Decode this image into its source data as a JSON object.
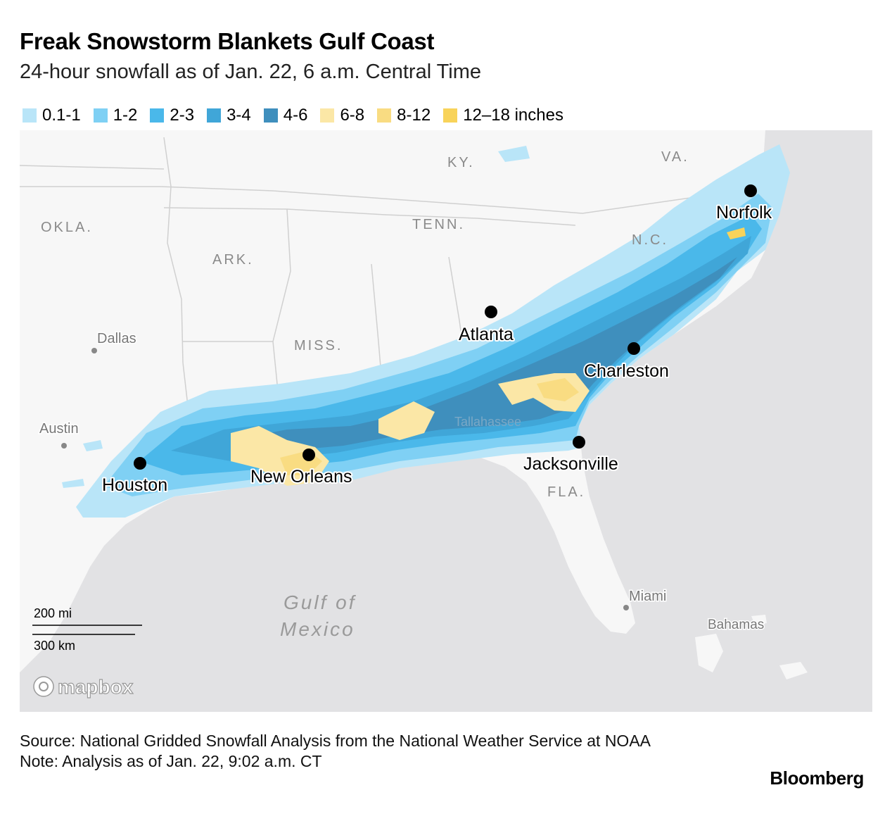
{
  "title": "Freak Snowstorm Blankets Gulf Coast",
  "subtitle": "24-hour snowfall as of Jan. 22, 6 a.m. Central Time",
  "legend": [
    {
      "label": "0.1-1",
      "color": "#b9e5f8"
    },
    {
      "label": "1-2",
      "color": "#7fd0f4"
    },
    {
      "label": "2-3",
      "color": "#4ab8ea"
    },
    {
      "label": "3-4",
      "color": "#40a6d8"
    },
    {
      "label": "4-6",
      "color": "#3f8fbd"
    },
    {
      "label": "6-8",
      "color": "#fbe7a6"
    },
    {
      "label": "8-12",
      "color": "#f9dc82"
    },
    {
      "label": "12–18 inches",
      "color": "#f8d35a"
    }
  ],
  "cities": {
    "norfolk": "Norfolk",
    "atlanta": "Atlanta",
    "charleston": "Charleston",
    "jacksonville": "Jacksonville",
    "houston": "Houston",
    "new_orleans": "New Orleans"
  },
  "minor_places": {
    "dallas": "Dallas",
    "austin": "Austin",
    "miami": "Miami",
    "bahamas": "Bahamas",
    "tallahassee": "Tallahassee"
  },
  "states": {
    "ky": "KY.",
    "va": "VA.",
    "okla": "OKLA.",
    "tenn": "TENN.",
    "nc": "N.C.",
    "ark": "ARK.",
    "miss": "MISS.",
    "fla": "FLA."
  },
  "water": {
    "line1": "Gulf of",
    "line2": "Mexico"
  },
  "scale": {
    "miles": "200 mi",
    "km": "300 km"
  },
  "attribution": "mapbox",
  "source": "Source: National Gridded Snowfall Analysis from the National Weather Service at NOAA",
  "note": "Note: Analysis as of Jan. 22, 9:02 a.m. CT",
  "brand": "Bloomberg",
  "colors": {
    "land": "#f7f7f7",
    "water": "#e2e2e4",
    "border": "#cfcfcf"
  }
}
